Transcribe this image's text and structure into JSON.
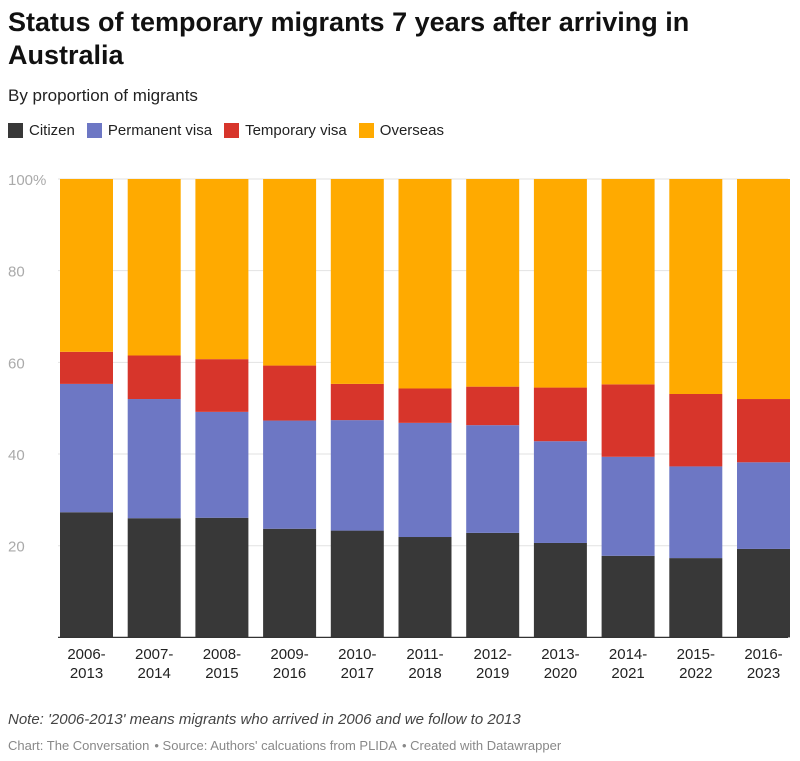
{
  "title": "Status of temporary migrants 7 years after arriving in Australia",
  "subtitle": "By proportion of migrants",
  "note": "Note: '2006-2013' means migrants who arrived in 2006 and we follow to 2013",
  "footer": {
    "chart": "Chart: The Conversation",
    "source": "• Source: Authors' calcuations from PLIDA",
    "created": "• Created with Datawrapper"
  },
  "chart_data": {
    "type": "bar",
    "stacked": true,
    "categories": [
      "2006-2013",
      "2007-2014",
      "2008-2015",
      "2009-2016",
      "2010-2017",
      "2011-2018",
      "2012-2019",
      "2013-2020",
      "2014-2021",
      "2015-2022",
      "2016-2023"
    ],
    "series": [
      {
        "name": "Citizen",
        "color": "#383838",
        "values": [
          27.3,
          26.0,
          26.1,
          23.7,
          23.3,
          21.9,
          22.8,
          20.6,
          17.8,
          17.3,
          19.3
        ]
      },
      {
        "name": "Permanent visa",
        "color": "#6d77c4",
        "values": [
          28.0,
          26.0,
          23.1,
          23.6,
          24.1,
          24.9,
          23.5,
          22.2,
          21.6,
          20.0,
          18.9
        ]
      },
      {
        "name": "Temporary visa",
        "color": "#d7352b",
        "values": [
          7.0,
          9.5,
          11.5,
          12.0,
          7.9,
          7.5,
          8.4,
          11.7,
          15.8,
          15.8,
          13.8
        ]
      },
      {
        "name": "Overseas",
        "color": "#ffaa00",
        "values": [
          37.7,
          38.5,
          39.3,
          40.7,
          44.7,
          45.7,
          45.3,
          45.5,
          44.8,
          46.9,
          48.0
        ]
      }
    ],
    "yticks": [
      "20",
      "40",
      "60",
      "80",
      "100%"
    ],
    "ylim": [
      0,
      100
    ],
    "grid": true,
    "legend": "top-left"
  }
}
